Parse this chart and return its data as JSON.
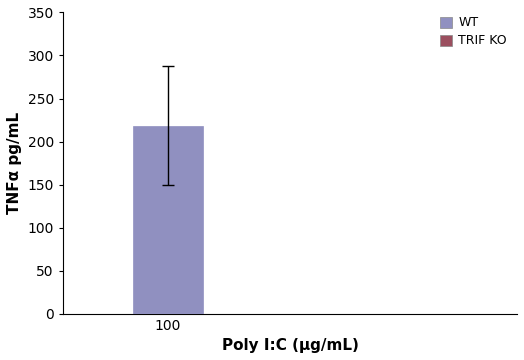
{
  "bar_value": 218,
  "bar_error_upper": 70,
  "bar_error_lower": 68,
  "bar_color": "#9090c0",
  "bar_edge_color": "#9090c0",
  "x_tick_label": "100",
  "xlabel": "Poly I:C (μg/mL)",
  "ylabel": "TNFα pg/mL",
  "ylim": [
    0,
    350
  ],
  "yticks": [
    0,
    50,
    100,
    150,
    200,
    250,
    300,
    350
  ],
  "legend_labels": [
    "WT",
    "TRIF KO"
  ],
  "legend_colors": [
    "#9090c0",
    "#9b4f5f"
  ],
  "bar_width": 0.4,
  "figsize": [
    5.24,
    3.6
  ],
  "dpi": 100,
  "error_capsize": 4,
  "error_linewidth": 1.0
}
